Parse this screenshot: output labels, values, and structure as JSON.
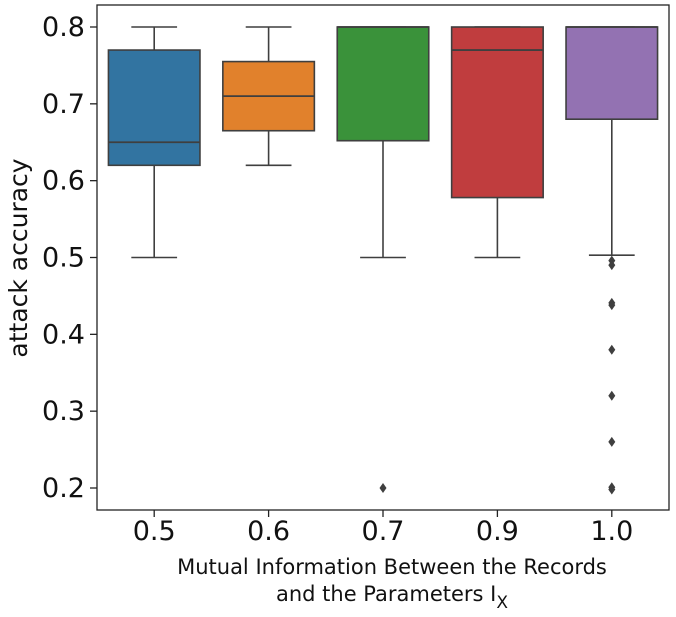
{
  "chart_data": {
    "type": "box",
    "title": "",
    "xlabel": {
      "line1": "Mutual Information Between the Records",
      "line2_prefix": "and the Parameters I",
      "line2_subscript": "X"
    },
    "ylabel": "attack accuracy",
    "ylim": [
      0.18,
      0.82
    ],
    "yticks": [
      "0.2",
      "0.3",
      "0.4",
      "0.5",
      "0.6",
      "0.7",
      "0.8"
    ],
    "grid": false,
    "legend": "none",
    "categories": [
      "0.5",
      "0.6",
      "0.7",
      "0.9",
      "1.0"
    ],
    "boxes": [
      {
        "label": "0.5",
        "whisker_low": 0.5,
        "q1": 0.62,
        "median": 0.65,
        "q3": 0.77,
        "whisker_high": 0.8,
        "outliers": [],
        "color": "#3274a1"
      },
      {
        "label": "0.6",
        "whisker_low": 0.62,
        "q1": 0.665,
        "median": 0.71,
        "q3": 0.755,
        "whisker_high": 0.8,
        "outliers": [],
        "color": "#e1812c"
      },
      {
        "label": "0.7",
        "whisker_low": 0.5,
        "q1": 0.652,
        "median": 0.8,
        "q3": 0.8,
        "whisker_high": 0.8,
        "outliers": [
          0.2
        ],
        "color": "#3a923a"
      },
      {
        "label": "0.9",
        "whisker_low": 0.5,
        "q1": 0.578,
        "median": 0.77,
        "q3": 0.8,
        "whisker_high": 0.8,
        "outliers": [],
        "color": "#c03d3e"
      },
      {
        "label": "1.0",
        "whisker_low": 0.503,
        "q1": 0.68,
        "median": 0.8,
        "q3": 0.8,
        "whisker_high": 0.8,
        "outliers": [
          0.496,
          0.49,
          0.441,
          0.438,
          0.38,
          0.32,
          0.26,
          0.201,
          0.198
        ],
        "color": "#9372b2"
      }
    ]
  }
}
